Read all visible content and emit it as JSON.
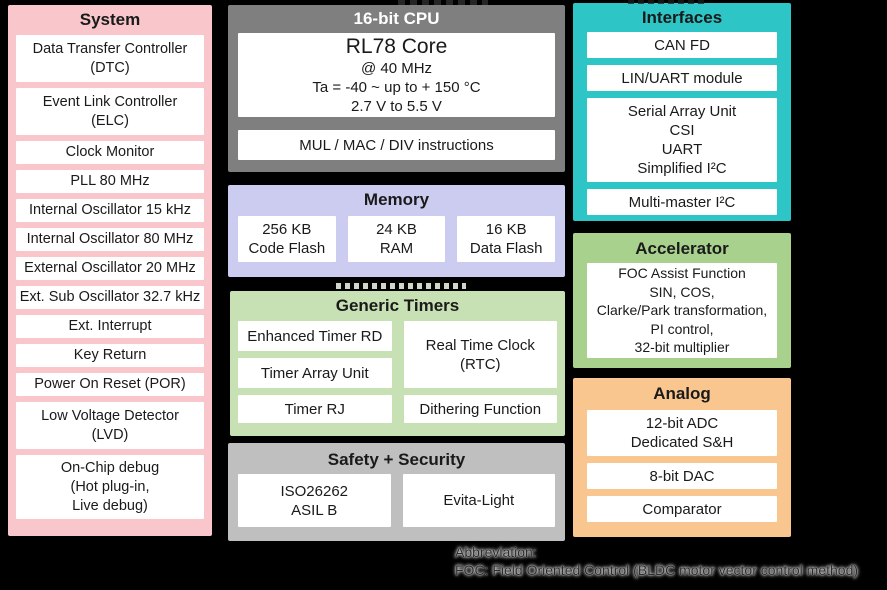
{
  "diagram": {
    "system": {
      "title": "System",
      "color": "#f8c6cb",
      "items": [
        "Data Transfer Controller\n(DTC)",
        "Event Link Controller\n(ELC)",
        "Clock Monitor",
        "PLL 80 MHz",
        "Internal Oscillator 15 kHz",
        "Internal Oscillator 80 MHz",
        "External Oscillator 20 MHz",
        "Ext. Sub Oscillator 32.7 kHz",
        "Ext. Interrupt",
        "Key Return",
        "Power On Reset (POR)",
        "Low Voltage Detector\n(LVD)",
        "On-Chip debug\n(Hot plug-in,\nLive debug)"
      ]
    },
    "cpu": {
      "title": "16-bit CPU",
      "color": "#7f7f7f",
      "title_color": "#ffffff",
      "core_title": "RL78 Core",
      "core_lines": [
        "@ 40 MHz",
        "Ta = -40 ~ up to + 150 °C",
        "2.7 V to 5.5 V"
      ],
      "instructions": "MUL / MAC / DIV instructions"
    },
    "memory": {
      "title": "Memory",
      "color": "#ccccf0",
      "items": [
        "256 KB\nCode Flash",
        "24 KB\nRAM",
        "16 KB\nData Flash"
      ]
    },
    "timers": {
      "title": "Generic Timers",
      "color": "#c7e0b4",
      "left_items": [
        "Enhanced Timer RD",
        "Timer Array Unit",
        "Timer RJ"
      ],
      "right_items": [
        "Real Time Clock\n(RTC)",
        "Dithering Function"
      ]
    },
    "safety": {
      "title": "Safety + Security",
      "color": "#bfbfbf",
      "items": [
        "ISO26262\nASIL B",
        "Evita-Light"
      ]
    },
    "interfaces": {
      "title": "Interfaces",
      "color": "#2ec5c6",
      "items": [
        "CAN FD",
        "LIN/UART module",
        "Serial Array Unit\nCSI\nUART\nSimplified I²C",
        "Multi-master I²C"
      ]
    },
    "accelerator": {
      "title": "Accelerator",
      "color": "#a9d18e",
      "items": [
        "FOC Assist Function\nSIN, COS,\nClarke/Park transformation,\nPI control,\n32-bit multiplier"
      ]
    },
    "analog": {
      "title": "Analog",
      "color": "#f9c690",
      "items": [
        "12-bit ADC\nDedicated S&H",
        "8-bit DAC",
        "Comparator"
      ]
    }
  },
  "footnote": {
    "line1": "Abbreviation:",
    "line2": "FOC: Field Oriented Control (BLDC motor vector control method)"
  }
}
